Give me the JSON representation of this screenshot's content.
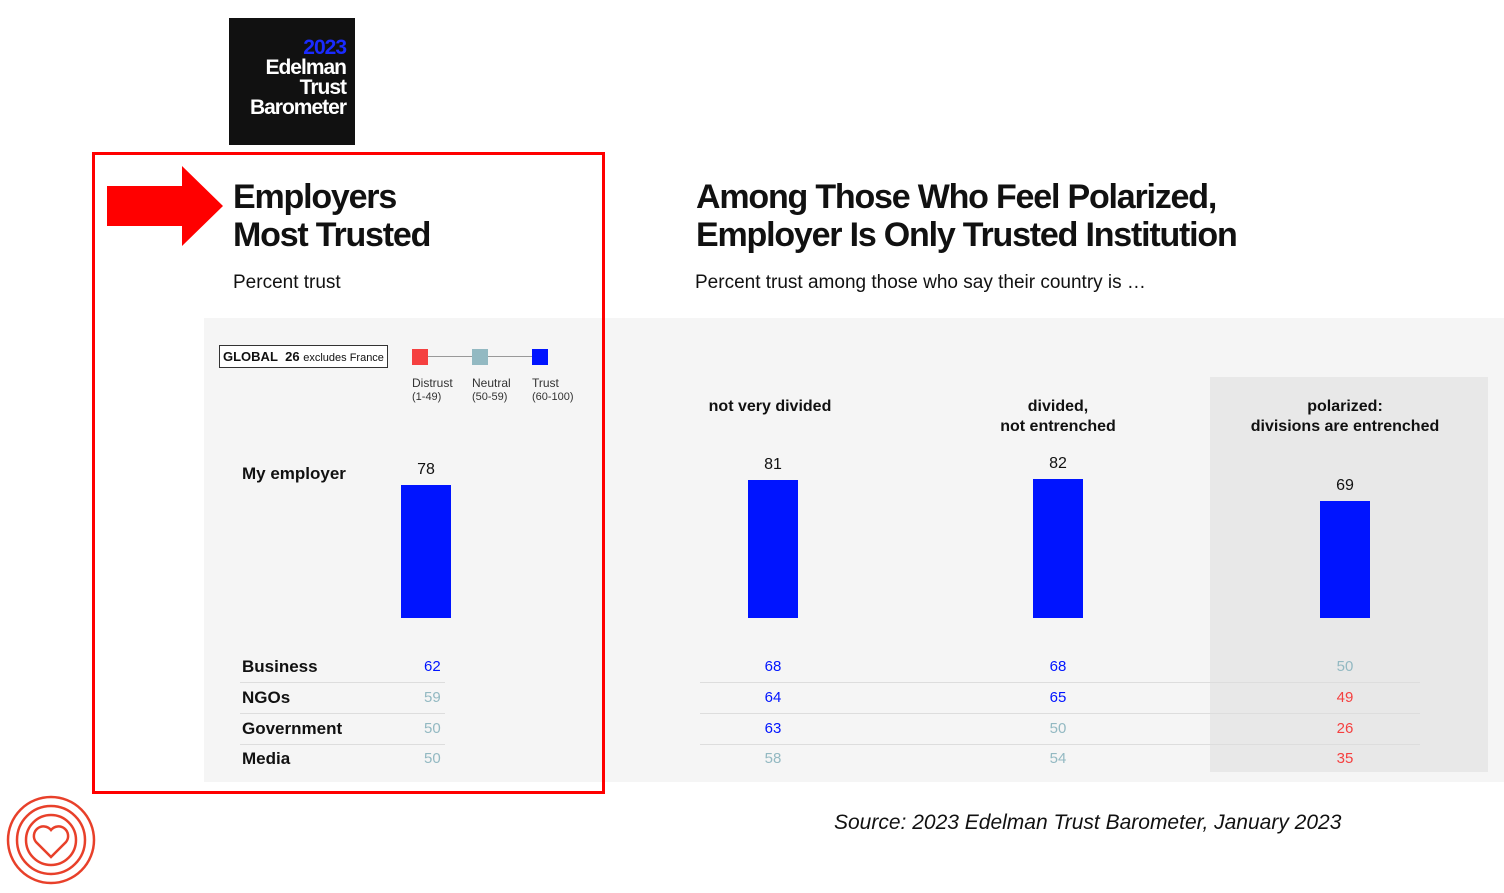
{
  "logo": {
    "year": "2023",
    "line1": "Edelman",
    "line2": "Trust",
    "line3": "Barometer"
  },
  "left": {
    "title1": "Employers",
    "title2": "Most Trusted",
    "subtitle": "Percent trust"
  },
  "right": {
    "title1": "Among Those Who Feel Polarized,",
    "title2": "Employer Is Only Trusted Institution",
    "subtitle": "Percent trust among those who say their country is …"
  },
  "legend": {
    "global_label": "GLOBAL",
    "global_count": "26",
    "global_note": "excludes France",
    "items": [
      {
        "label": "Distrust",
        "range": "(1-49)",
        "color": "#f54040"
      },
      {
        "label": "Neutral",
        "range": "(50-59)",
        "color": "#93b9c2"
      },
      {
        "label": "Trust",
        "range": "(60-100)",
        "color": "#0014ff"
      }
    ]
  },
  "chart_data": {
    "type": "bar",
    "title": "Employers Most Trusted",
    "categories": [
      "Global",
      "not very divided",
      "divided, not entrenched",
      "polarized: divisions are entrenched"
    ],
    "category_labels": [
      "",
      "not very divided",
      "divided,\nnot entrenched",
      "polarized:\ndivisions are entrenched"
    ],
    "bar_series": {
      "name": "My employer",
      "values": [
        78,
        81,
        82,
        69
      ]
    },
    "table": {
      "rows": [
        "Business",
        "NGOs",
        "Government",
        "Media"
      ],
      "values": [
        [
          62,
          68,
          68,
          50
        ],
        [
          59,
          64,
          65,
          49
        ],
        [
          50,
          63,
          50,
          26
        ],
        [
          50,
          58,
          54,
          35
        ]
      ]
    },
    "ylim": [
      0,
      100
    ]
  },
  "colors": {
    "trust": "#0014ff",
    "neutral": "#93b9c2",
    "distrust": "#f54040"
  },
  "source": "Source: 2023 Edelman Trust Barometer, January 2023"
}
